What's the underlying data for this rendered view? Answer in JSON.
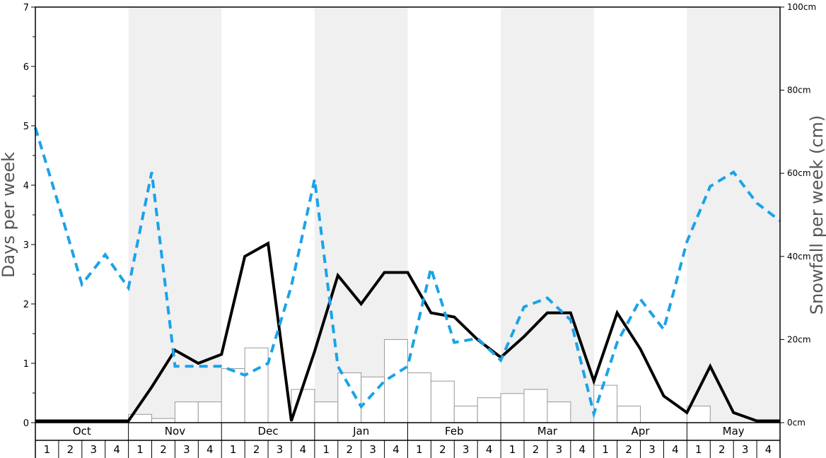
{
  "colors": {
    "band": "#f0f0f0",
    "snow_line": "#000000",
    "dashed_line": "#1aa3e8",
    "bar_fill": "#ffffff",
    "bar_stroke": "#999999",
    "axis_title": "#555555"
  },
  "chart_data": {
    "type": "bar+line",
    "ylabel": "Days per week",
    "y2label": "Snowfall per week (cm)",
    "ylim": [
      0,
      7
    ],
    "y2lim": [
      0,
      100
    ],
    "left_ticks": [
      "0",
      "1",
      "2",
      "3",
      "4",
      "5",
      "6",
      "7"
    ],
    "right_ticks": [
      "0cm",
      "20cm",
      "40cm",
      "60cm",
      "80cm",
      "100cm"
    ],
    "grid": false,
    "months": [
      "Oct",
      "Nov",
      "Dec",
      "Jan",
      "Feb",
      "Mar",
      "Apr",
      "May"
    ],
    "week_labels": [
      "1",
      "2",
      "3",
      "4"
    ],
    "shaded_months": [
      "Nov",
      "Jan",
      "Mar",
      "May"
    ],
    "series": [
      {
        "type": "bar",
        "axis": "right",
        "values": [
          0,
          0,
          0,
          0,
          2,
          1,
          5,
          5,
          13,
          18,
          0,
          8,
          5,
          12,
          11,
          20,
          12,
          10,
          4,
          6,
          7,
          8,
          5,
          0,
          9,
          4,
          0,
          0,
          4,
          0,
          0,
          0
        ]
      },
      {
        "type": "line",
        "style": "solid",
        "axis": "left",
        "values": [
          0.03,
          0.03,
          0.03,
          0.03,
          0.03,
          0.6,
          1.22,
          1.0,
          1.15,
          2.8,
          3.02,
          0.03,
          1.2,
          2.48,
          2.0,
          2.53,
          2.53,
          1.85,
          1.78,
          1.4,
          1.1,
          1.45,
          1.85,
          1.85,
          0.7,
          1.85,
          1.24,
          0.45,
          0.17,
          0.95,
          0.17,
          0.03,
          0.03
        ]
      },
      {
        "type": "line",
        "style": "dashed",
        "axis": "left",
        "values": [
          4.97,
          3.67,
          2.33,
          2.83,
          2.27,
          4.22,
          0.95,
          0.95,
          0.95,
          0.8,
          1.0,
          2.3,
          4.1,
          0.95,
          0.27,
          0.7,
          0.95,
          2.6,
          1.35,
          1.42,
          1.05,
          1.95,
          2.1,
          1.73,
          0.15,
          1.35,
          2.08,
          1.57,
          3.05,
          3.98,
          4.22,
          3.7,
          3.4
        ]
      }
    ]
  }
}
